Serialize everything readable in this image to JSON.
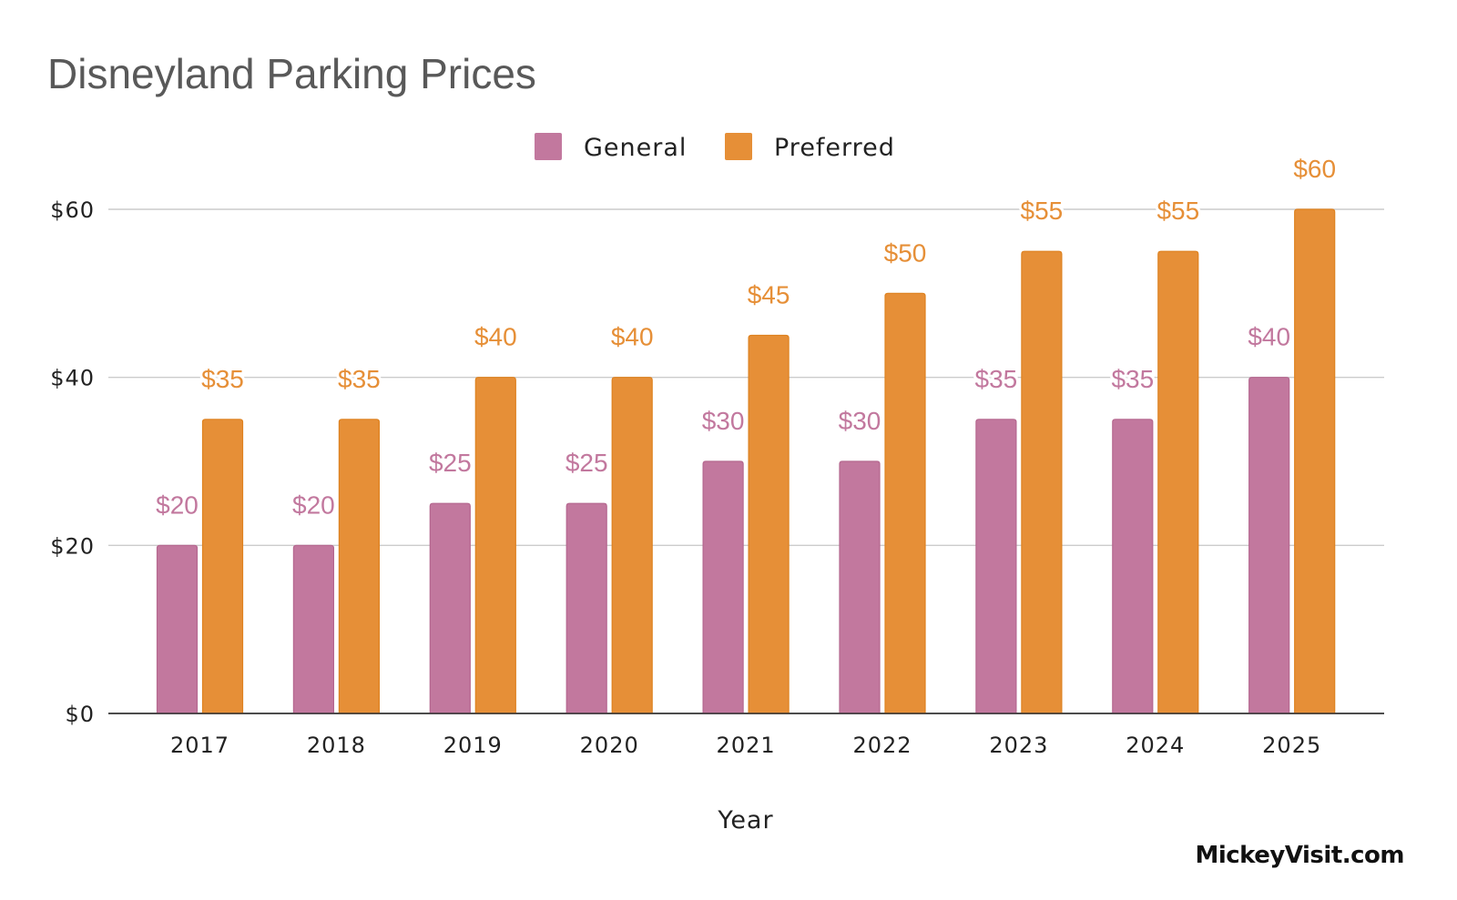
{
  "watermark": "MickeyVisit.com",
  "chart_data": {
    "type": "bar",
    "title": "Disneyland Parking Prices",
    "xlabel": "Year",
    "ylabel": "",
    "categories": [
      "2017",
      "2018",
      "2019",
      "2020",
      "2021",
      "2022",
      "2023",
      "2024",
      "2025"
    ],
    "series": [
      {
        "name": "General",
        "color": "#c2789e",
        "values": [
          20,
          20,
          25,
          25,
          30,
          30,
          35,
          35,
          40
        ],
        "labels": [
          "$20",
          "$20",
          "$25",
          "$25",
          "$30",
          "$30",
          "$35",
          "$35",
          "$40"
        ]
      },
      {
        "name": "Preferred",
        "color": "#e68f37",
        "values": [
          35,
          35,
          40,
          40,
          45,
          50,
          55,
          55,
          60
        ],
        "labels": [
          "$35",
          "$35",
          "$40",
          "$40",
          "$45",
          "$50",
          "$55",
          "$55",
          "$60"
        ]
      }
    ],
    "ylim": [
      0,
      60
    ],
    "yticks": [
      0,
      20,
      40,
      60
    ],
    "ytick_labels": [
      "$0",
      "$20",
      "$40",
      "$60"
    ],
    "grid": true,
    "legend": "top-center"
  }
}
